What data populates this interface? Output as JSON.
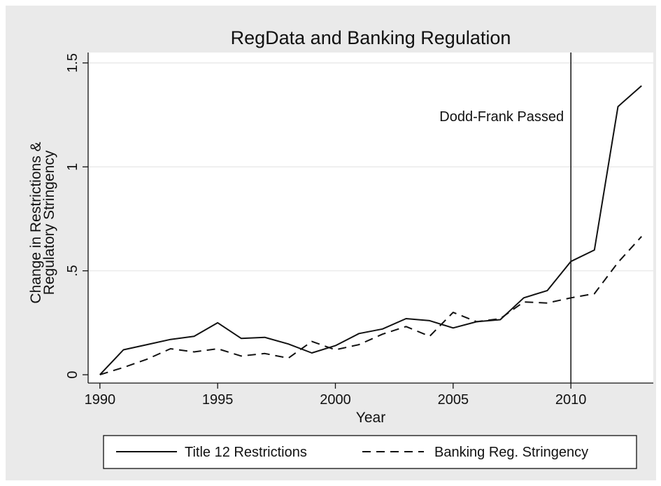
{
  "chart_data": {
    "type": "line",
    "title": "RegData and Banking Regulation",
    "xlabel": "Year",
    "ylabel": [
      "Change in Restrictions &",
      "Regulatory Stringency"
    ],
    "xlim": [
      1989.5,
      2013.5
    ],
    "ylim": [
      -0.04,
      1.55
    ],
    "xticks": [
      {
        "value": 1990,
        "label": "1990"
      },
      {
        "value": 1995,
        "label": "1995"
      },
      {
        "value": 2000,
        "label": "2000"
      },
      {
        "value": 2005,
        "label": "2005"
      },
      {
        "value": 2010,
        "label": "2010"
      }
    ],
    "yticks": [
      {
        "value": 0,
        "label": "0"
      },
      {
        "value": 0.5,
        "label": ".5"
      },
      {
        "value": 1,
        "label": "1"
      },
      {
        "value": 1.5,
        "label": "1.5"
      }
    ],
    "grid": true,
    "x": [
      1990,
      1991,
      1992,
      1993,
      1994,
      1995,
      1996,
      1997,
      1998,
      1999,
      2000,
      2001,
      2002,
      2003,
      2004,
      2005,
      2006,
      2007,
      2008,
      2009,
      2010,
      2011,
      2012,
      2013
    ],
    "series": [
      {
        "name": "Title 12 Restrictions",
        "style": "solid",
        "color": "#111111",
        "values": [
          0.0,
          0.12,
          0.145,
          0.17,
          0.185,
          0.25,
          0.175,
          0.18,
          0.148,
          0.105,
          0.14,
          0.198,
          0.22,
          0.27,
          0.26,
          0.225,
          0.255,
          0.265,
          0.37,
          0.405,
          0.545,
          0.6,
          1.29,
          1.39
        ]
      },
      {
        "name": "Banking Reg. Stringency",
        "style": "dashed",
        "color": "#111111",
        "values": [
          0.0,
          0.035,
          0.075,
          0.125,
          0.11,
          0.125,
          0.09,
          0.102,
          0.08,
          0.16,
          0.12,
          0.145,
          0.195,
          0.232,
          0.185,
          0.3,
          0.255,
          0.27,
          0.35,
          0.345,
          0.37,
          0.39,
          0.54,
          0.665
        ]
      }
    ],
    "vline": {
      "x": 2010,
      "label": "Dodd-Frank Passed"
    },
    "legend_position": "bottom"
  }
}
